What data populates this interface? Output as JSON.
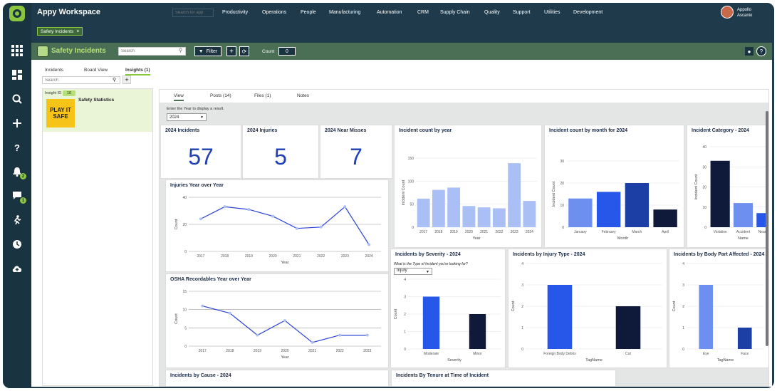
{
  "app": {
    "title": "Appy Workspace",
    "search_placeholder": "Search for app"
  },
  "nav": [
    "Productivity",
    "Operations",
    "People",
    "Manufacturing",
    "Automation",
    "CRM",
    "Supply Chain",
    "Quality",
    "Support",
    "Utilities",
    "Development"
  ],
  "user": {
    "first": "Appollo",
    "last": "Ascanio"
  },
  "open_tab": "Safety Incidents",
  "rail": {
    "badge_alerts": "2",
    "badge_chat": "1"
  },
  "module": {
    "title": "Safety Incidents",
    "search_placeholder": "Search",
    "filter_label": "Filter",
    "count_label": "Count",
    "count_value": "0"
  },
  "subtabs": {
    "incidents": "Incidents",
    "board": "Board View",
    "insights": "Insights (1)"
  },
  "list": {
    "search_placeholder": "Search",
    "insight_id_label": "Insight ID",
    "insight_id": "10",
    "card_title": "Safety Statistics",
    "thumb_text": "PLAY IT SAFE"
  },
  "detail_tabs": [
    "View",
    "Posts (14)",
    "Files (1)",
    "Notes"
  ],
  "year_prompt": "Enter the Year to display a result.",
  "year_selected": "2024",
  "kpis": [
    {
      "label": "2024 Incidents",
      "value": "57"
    },
    {
      "label": "2024 Injuries",
      "value": "5"
    },
    {
      "label": "2024 Near Misses",
      "value": "7"
    }
  ],
  "severity_prompt": "What is the Type of Incident you're looking for?",
  "severity_selected": "Injury",
  "bottom_titles": {
    "cause": "Incidents by Cause - 2024",
    "tenure": "Incidents By Tenure at Time of Incident"
  },
  "colors": {
    "nav_bg": "#1f3a4a",
    "rail_bg": "#1a3340",
    "accent": "#8bc63f",
    "module_bg": "#4a6f54",
    "kpi": "#1f3fb3"
  },
  "chart_data": [
    {
      "id": "by-year",
      "type": "bar",
      "title": "Incident count by year",
      "xlabel": "Year",
      "ylabel": "Incident Count",
      "categories": [
        "2017",
        "2018",
        "2019",
        "2020",
        "2021",
        "2022",
        "2023",
        "2024"
      ],
      "values": [
        62,
        81,
        86,
        46,
        43,
        41,
        139,
        57
      ],
      "ylim": [
        0,
        150
      ],
      "yticks": [
        0,
        50,
        100,
        150
      ],
      "color": "#a9bff5"
    },
    {
      "id": "by-month",
      "type": "bar",
      "title": "Incident count by month for 2024",
      "xlabel": "Month",
      "ylabel": "Incident Count",
      "categories": [
        "January",
        "February",
        "March",
        "April"
      ],
      "values": [
        13,
        16,
        20,
        8
      ],
      "ylim": [
        0,
        30
      ],
      "yticks": [
        0,
        10,
        20,
        30
      ],
      "colors": [
        "#6d8ff0",
        "#2657e8",
        "#1c3fa6",
        "#0f1a3a"
      ]
    },
    {
      "id": "by-category",
      "type": "bar",
      "title": "Incident Category - 2024",
      "xlabel": "Name",
      "ylabel": "Incident Count",
      "categories": [
        "Violation",
        "Accident",
        "Near Miss"
      ],
      "values": [
        33,
        12,
        7
      ],
      "ylim": [
        0,
        40
      ],
      "yticks": [
        0,
        10,
        20,
        30,
        40
      ],
      "colors": [
        "#0f1a3a",
        "#6d8ff0",
        "#2657e8"
      ]
    },
    {
      "id": "injuries-yoy",
      "type": "line",
      "title": "Injuries Year over Year",
      "xlabel": "Year",
      "ylabel": "Count",
      "x": [
        "2017",
        "2018",
        "2019",
        "2020",
        "2021",
        "2022",
        "2023",
        "2024"
      ],
      "values": [
        24,
        33,
        31,
        26,
        17,
        18,
        33,
        5
      ],
      "ylim": [
        0,
        40
      ],
      "yticks": [
        0,
        20,
        40
      ]
    },
    {
      "id": "osha-yoy",
      "type": "line",
      "title": "OSHA Recordables Year over Year",
      "xlabel": "Year",
      "ylabel": "Count",
      "x": [
        "2017",
        "2018",
        "2019",
        "2020",
        "2021",
        "2022",
        "2023"
      ],
      "values": [
        11,
        9,
        3,
        7,
        1,
        3,
        3
      ],
      "ylim": [
        0,
        15
      ],
      "yticks": [
        0,
        5,
        10,
        15
      ]
    },
    {
      "id": "by-severity",
      "type": "bar",
      "title": "Incidents by Severity - 2024",
      "xlabel": "Severity",
      "ylabel": "Count",
      "categories": [
        "Moderate",
        "Minor"
      ],
      "values": [
        3,
        2
      ],
      "ylim": [
        0,
        4
      ],
      "yticks": [
        0,
        1,
        2,
        3,
        4
      ],
      "colors": [
        "#2657e8",
        "#0f1a3a"
      ]
    },
    {
      "id": "by-injury-type",
      "type": "bar",
      "title": "Incidents by Injury Type - 2024",
      "xlabel": "TagName",
      "ylabel": "Count",
      "categories": [
        "Foreign Body Debris",
        "Cut"
      ],
      "values": [
        3,
        2
      ],
      "ylim": [
        0,
        4
      ],
      "yticks": [
        0,
        1,
        2,
        3,
        4
      ],
      "colors": [
        "#2657e8",
        "#0f1a3a"
      ]
    },
    {
      "id": "by-body-part",
      "type": "bar",
      "title": "Incidents by Body Part Affected - 2024",
      "xlabel": "TagName",
      "ylabel": "Count",
      "categories": [
        "Eye",
        "Face"
      ],
      "values": [
        3,
        1
      ],
      "ylim": [
        0,
        4
      ],
      "yticks": [
        0,
        1,
        2,
        3,
        4
      ],
      "colors": [
        "#6d8ff0",
        "#1c3fa6"
      ]
    }
  ]
}
